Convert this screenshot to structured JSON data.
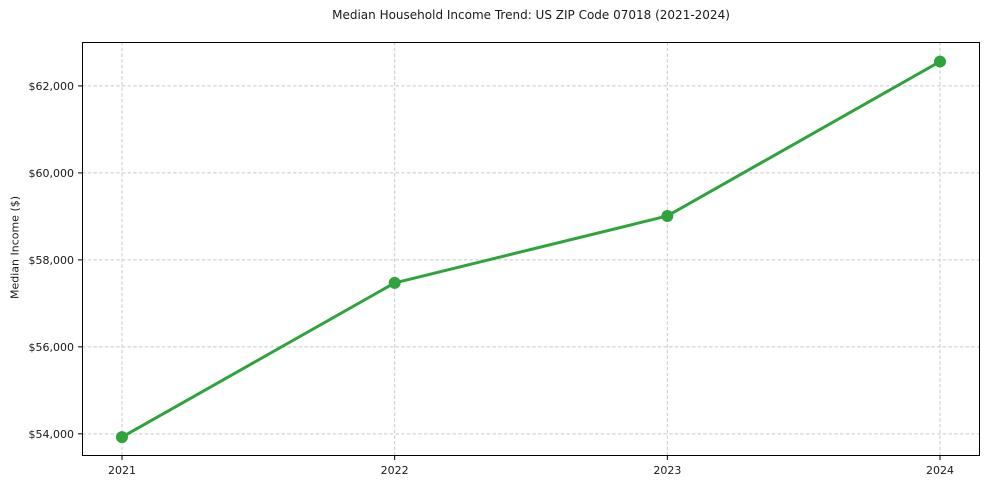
{
  "chart_data": {
    "type": "line",
    "title": "Median Household Income Trend: US ZIP Code 07018 (2021-2024)",
    "xlabel": "",
    "ylabel": "Median Income ($)",
    "x": [
      2021,
      2022,
      2023,
      2024
    ],
    "x_tick_labels": [
      "2021",
      "2022",
      "2023",
      "2024"
    ],
    "series": [
      {
        "name": "Median Household Income",
        "values": [
          53925,
          57470,
          59010,
          62560
        ]
      }
    ],
    "y_ticks": [
      54000,
      56000,
      58000,
      60000,
      62000
    ],
    "y_tick_labels": [
      "$54,000",
      "$56,000",
      "$58,000",
      "$60,000",
      "$62,000"
    ],
    "ylim": [
      53490,
      63010
    ],
    "grid": true,
    "grid_style": "dashed",
    "legend": "none",
    "marker": "circle",
    "colors": {
      "line": "#2fa43c",
      "marker": "#2fa43c",
      "grid": "#c9c9c9",
      "axis": "#000000",
      "text": "#1a1a1a",
      "background": "#ffffff"
    }
  }
}
